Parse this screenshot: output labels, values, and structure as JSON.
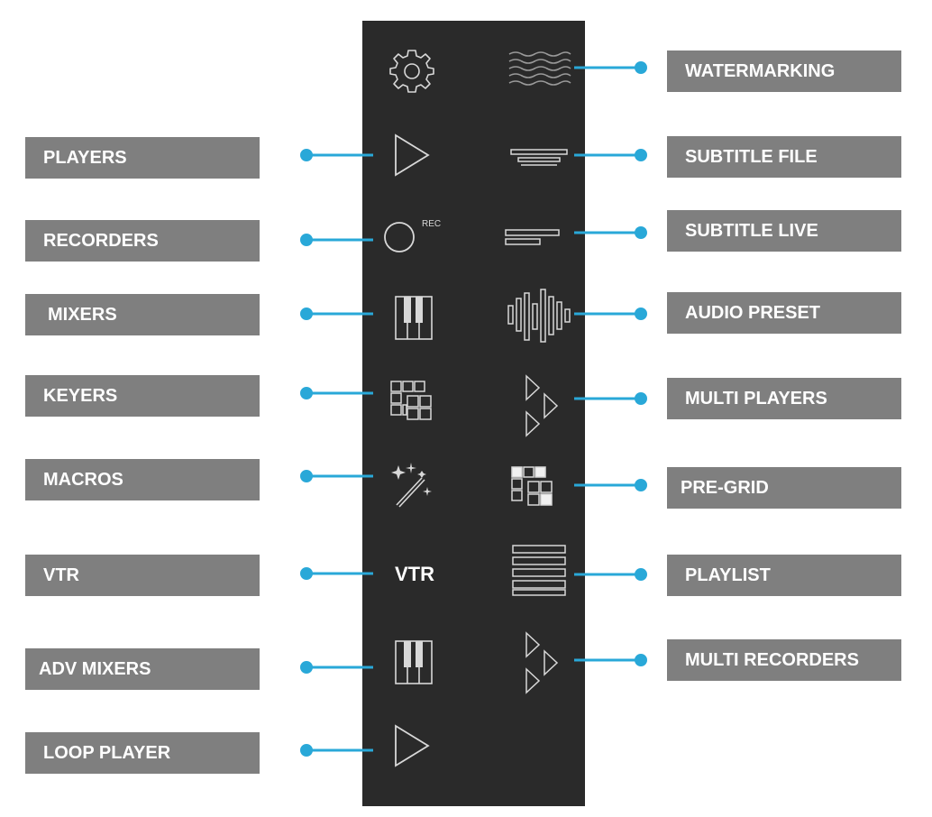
{
  "left_labels": [
    {
      "id": "players",
      "text": "PLAYERS"
    },
    {
      "id": "recorders",
      "text": "RECORDERS"
    },
    {
      "id": "mixers",
      "text": "MIXERS"
    },
    {
      "id": "keyers",
      "text": "KEYERS"
    },
    {
      "id": "macros",
      "text": "MACROS"
    },
    {
      "id": "vtr",
      "text": "VTR"
    },
    {
      "id": "adv_mixers",
      "text": "ADV MIXERS"
    },
    {
      "id": "loop_player",
      "text": "LOOP PLAYER"
    }
  ],
  "right_labels": [
    {
      "id": "watermarking",
      "text": "WATERMARKING"
    },
    {
      "id": "subtitle_file",
      "text": "SUBTITLE FILE"
    },
    {
      "id": "subtitle_live",
      "text": "SUBTITLE LIVE"
    },
    {
      "id": "audio_preset",
      "text": "AUDIO PRESET"
    },
    {
      "id": "multi_players",
      "text": "MULTI PLAYERS"
    },
    {
      "id": "pre_grid",
      "text": "PRE-GRID"
    },
    {
      "id": "playlist",
      "text": "PLAYLIST"
    },
    {
      "id": "multi_recorders",
      "text": "MULTI RECORDERS"
    }
  ],
  "icon_text": {
    "rec": "REC",
    "vtr": "VTR"
  },
  "icons": [
    "gear-icon",
    "waves-icon",
    "play-icon",
    "subtitle-file-icon",
    "record-icon",
    "subtitle-live-icon",
    "piano-keys-icon",
    "audio-waveform-icon",
    "keyer-grid-icon",
    "multi-play-icon",
    "magic-wand-icon",
    "pre-grid-icon",
    "vtr-icon",
    "playlist-icon",
    "piano-keys-icon",
    "multi-record-icon",
    "play-icon"
  ],
  "colors": {
    "panel": "#2a2a2a",
    "label_bg": "#7f7f7f",
    "label_text": "#ffffff",
    "connector": "#29a8d8",
    "icon_stroke": "#d8d8d8"
  }
}
